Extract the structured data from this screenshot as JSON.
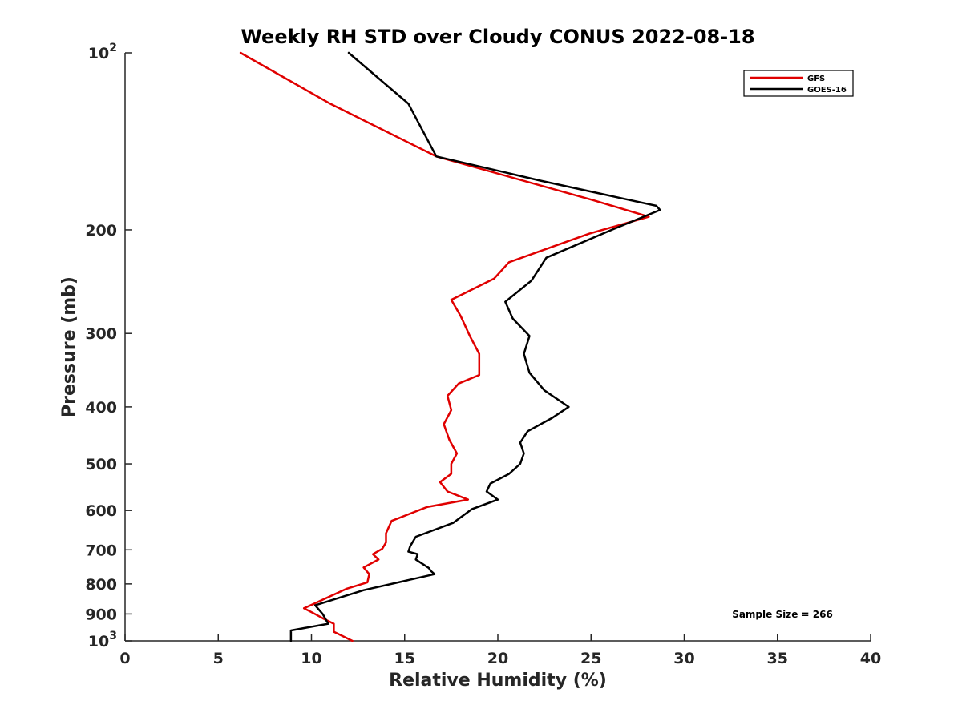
{
  "chart_data": {
    "type": "line",
    "title": "Weekly RH STD over Cloudy CONUS 2022-08-18",
    "xlabel": "Relative Humidity (%)",
    "ylabel": "Pressure (mb)",
    "xlim": [
      0,
      40
    ],
    "ylim": [
      100,
      1000
    ],
    "yscale": "log",
    "y_reversed": true,
    "x_ticks": [
      0,
      5,
      10,
      15,
      20,
      25,
      30,
      35,
      40
    ],
    "y_ticks": [
      {
        "value": 100,
        "base": "10",
        "exp": "2"
      },
      {
        "value": 200,
        "label": "200"
      },
      {
        "value": 300,
        "label": "300"
      },
      {
        "value": 400,
        "label": "400"
      },
      {
        "value": 500,
        "label": "500"
      },
      {
        "value": 600,
        "label": "600"
      },
      {
        "value": 700,
        "label": "700"
      },
      {
        "value": 800,
        "label": "800"
      },
      {
        "value": 900,
        "label": "900"
      },
      {
        "value": 1000,
        "base": "10",
        "exp": "3"
      }
    ],
    "legend": {
      "location": "top-right",
      "entries": [
        {
          "name": "GFS",
          "color": "#e00000"
        },
        {
          "name": "GOES-16",
          "color": "#000000"
        }
      ]
    },
    "annotation": "Sample Size = 266",
    "series": [
      {
        "name": "GFS",
        "color": "#e00000",
        "x": [
          6.2,
          11.0,
          16.7,
          25.1,
          28.1,
          24.9,
          20.6,
          19.8,
          17.5,
          18.0,
          18.5,
          19.0,
          19.0,
          17.9,
          17.3,
          17.5,
          17.1,
          17.4,
          17.8,
          17.5,
          17.5,
          16.9,
          17.3,
          18.4,
          16.2,
          14.3,
          14.0,
          14.0,
          13.8,
          13.3,
          13.6,
          12.8,
          13.1,
          13.0,
          11.9,
          9.6,
          10.1,
          10.6,
          11.2,
          11.2,
          12.2
        ],
        "y": [
          100,
          122,
          150,
          178,
          190,
          203,
          227,
          242,
          263,
          280,
          303,
          325,
          353,
          365,
          383,
          405,
          428,
          455,
          480,
          500,
          520,
          537,
          557,
          575,
          592,
          625,
          656,
          680,
          697,
          712,
          727,
          750,
          770,
          795,
          815,
          880,
          897,
          915,
          935,
          965,
          1000
        ]
      },
      {
        "name": "GOES-16",
        "color": "#000000",
        "x": [
          12.0,
          15.2,
          16.7,
          22.3,
          28.5,
          28.7,
          26.1,
          22.6,
          21.8,
          20.4,
          20.8,
          21.7,
          21.4,
          21.7,
          22.5,
          23.8,
          22.9,
          21.6,
          21.2,
          21.4,
          21.2,
          20.6,
          19.6,
          19.4,
          20.0,
          18.6,
          17.6,
          15.6,
          15.3,
          15.2,
          15.7,
          15.6,
          16.3,
          16.4,
          16.6,
          12.8,
          10.2,
          10.6,
          10.9,
          8.9,
          8.9
        ],
        "y": [
          100,
          122,
          150,
          165,
          182,
          185,
          200,
          223,
          244,
          265,
          283,
          303,
          325,
          350,
          375,
          400,
          418,
          440,
          460,
          480,
          500,
          520,
          540,
          557,
          575,
          597,
          630,
          665,
          690,
          705,
          712,
          727,
          752,
          760,
          770,
          820,
          870,
          900,
          935,
          960,
          1000
        ]
      }
    ]
  }
}
